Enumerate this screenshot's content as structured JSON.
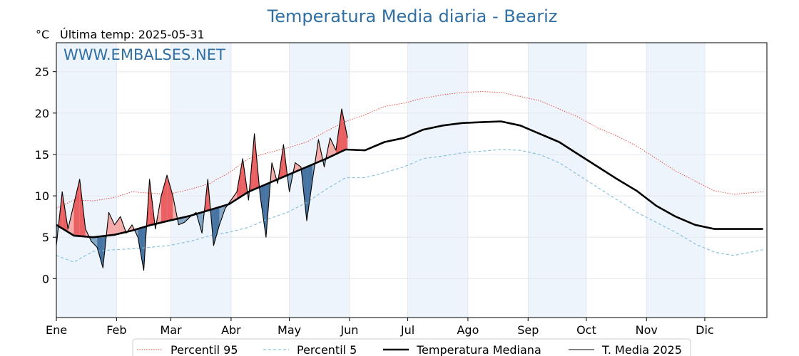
{
  "chart_data": {
    "type": "line",
    "title": "Temperatura Media diaria - Beariz",
    "unit": "°C",
    "last_temp_label": "Última temp: 2025-05-31",
    "watermark": "WWW.EMBALSES.NET",
    "xlabel": "",
    "ylabel": "",
    "ylim": [
      -4.7,
      28.5
    ],
    "yticks": [
      0,
      5,
      10,
      15,
      20,
      25
    ],
    "grid": true,
    "legend_position": "bottom-center",
    "month_labels": [
      "Ene",
      "Feb",
      "Mar",
      "Abr",
      "May",
      "Jun",
      "Jul",
      "Ago",
      "Sep",
      "Oct",
      "Nov",
      "Dic"
    ],
    "month_start_days": [
      1,
      32,
      60,
      91,
      121,
      152,
      182,
      213,
      244,
      274,
      305,
      335
    ],
    "shaded_months": [
      "Ene",
      "Mar",
      "May",
      "Jul",
      "Sep",
      "Nov"
    ],
    "colors": {
      "title": "#2f6fa3",
      "p95": "#e8433a",
      "p5": "#86c2dc",
      "median": "#000000",
      "current": "#000000",
      "above_fill": "#f4a6a4",
      "above_fill_strong": "#e8595a",
      "below_fill": "#7ea3c4",
      "below_fill_strong": "#3d6e9e",
      "month_band": "#eef4fb"
    },
    "series": [
      {
        "name": "Percentil 95",
        "style": "dotted",
        "x": [
          1,
          10,
          20,
          31,
          40,
          50,
          59,
          70,
          80,
          90,
          100,
          110,
          120,
          130,
          140,
          150,
          160,
          170,
          180,
          190,
          200,
          210,
          220,
          230,
          240,
          250,
          260,
          270,
          280,
          290,
          300,
          310,
          320,
          330,
          340,
          350,
          365
        ],
        "values": [
          8.5,
          9.5,
          9.4,
          9.8,
          10.5,
          10.3,
          10.2,
          10.8,
          11.5,
          12.8,
          14.5,
          15.2,
          15.8,
          16.5,
          17.8,
          19.0,
          19.8,
          20.8,
          21.2,
          21.8,
          22.2,
          22.5,
          22.6,
          22.5,
          22.0,
          21.5,
          20.5,
          19.5,
          18.2,
          17.2,
          16.0,
          14.5,
          13.0,
          11.8,
          10.6,
          10.2,
          10.5
        ]
      },
      {
        "name": "Percentil 5",
        "style": "dashed",
        "x": [
          1,
          10,
          20,
          31,
          40,
          50,
          59,
          70,
          80,
          90,
          100,
          110,
          120,
          130,
          140,
          150,
          160,
          170,
          180,
          190,
          200,
          210,
          220,
          230,
          240,
          250,
          260,
          270,
          280,
          290,
          300,
          310,
          320,
          330,
          340,
          350,
          365
        ],
        "values": [
          2.8,
          2.0,
          3.3,
          3.5,
          3.6,
          3.8,
          4.0,
          4.5,
          5.2,
          5.6,
          6.2,
          7.2,
          8.0,
          9.2,
          10.8,
          12.2,
          12.2,
          12.8,
          13.5,
          14.5,
          14.8,
          15.2,
          15.4,
          15.6,
          15.5,
          15.0,
          14.0,
          12.5,
          11.0,
          9.5,
          8.0,
          6.8,
          5.6,
          4.2,
          3.2,
          2.8,
          3.5
        ]
      },
      {
        "name": "Temperatura Mediana",
        "style": "solid-thick",
        "x": [
          1,
          10,
          20,
          31,
          40,
          50,
          59,
          70,
          80,
          90,
          100,
          110,
          120,
          130,
          140,
          150,
          160,
          170,
          180,
          190,
          200,
          210,
          220,
          230,
          240,
          250,
          260,
          270,
          280,
          290,
          300,
          310,
          320,
          330,
          340,
          350,
          365
        ],
        "values": [
          6.5,
          5.2,
          5.0,
          5.3,
          5.8,
          6.5,
          7.0,
          7.6,
          8.3,
          9.0,
          10.5,
          11.5,
          12.5,
          13.5,
          14.5,
          15.6,
          15.5,
          16.5,
          17.0,
          18.0,
          18.5,
          18.8,
          18.9,
          19.0,
          18.5,
          17.5,
          16.5,
          15.0,
          13.5,
          12.0,
          10.6,
          8.8,
          7.5,
          6.5,
          6.0,
          6.0,
          6.0
        ]
      },
      {
        "name": "T. Media 2025",
        "style": "solid-thin",
        "x": [
          1,
          4,
          7,
          10,
          13,
          16,
          19,
          22,
          25,
          28,
          31,
          34,
          37,
          40,
          43,
          46,
          49,
          52,
          55,
          58,
          61,
          64,
          67,
          70,
          73,
          76,
          79,
          82,
          85,
          88,
          91,
          94,
          97,
          100,
          103,
          106,
          109,
          112,
          115,
          118,
          121,
          124,
          127,
          130,
          133,
          136,
          139,
          142,
          145,
          148,
          151
        ],
        "values": [
          4.0,
          10.5,
          6.0,
          9.0,
          12.0,
          6.0,
          4.5,
          3.8,
          1.3,
          8.0,
          6.5,
          7.5,
          5.5,
          6.5,
          5.0,
          1.0,
          12.0,
          6.0,
          10.0,
          12.5,
          10.0,
          6.5,
          6.8,
          7.5,
          8.0,
          5.5,
          12.0,
          4.0,
          6.5,
          8.5,
          9.5,
          10.5,
          14.5,
          9.5,
          17.5,
          10.0,
          5.0,
          14.0,
          11.5,
          16.2,
          10.5,
          14.0,
          13.5,
          7.0,
          12.0,
          16.8,
          13.5,
          17.0,
          15.5,
          20.5,
          17.0
        ]
      }
    ]
  }
}
